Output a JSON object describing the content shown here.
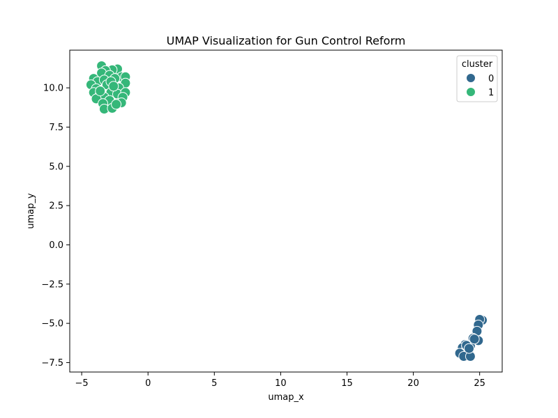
{
  "chart_data": {
    "type": "scatter",
    "title": "UMAP Visualization for Gun Control Reform",
    "xlabel": "umap_x",
    "ylabel": "umap_y",
    "xlim": [
      -5.9,
      26.7
    ],
    "ylim": [
      -8.1,
      12.4
    ],
    "xticks": [
      -5,
      0,
      5,
      10,
      15,
      20,
      25
    ],
    "yticks": [
      -7.5,
      -5.0,
      -2.5,
      0.0,
      2.5,
      5.0,
      7.5,
      10.0
    ],
    "xtick_labels": [
      "−5",
      "0",
      "5",
      "10",
      "15",
      "20",
      "25"
    ],
    "ytick_labels": [
      "−7.5",
      "−5.0",
      "−2.5",
      "0.0",
      "2.5",
      "5.0",
      "7.5",
      "10.0"
    ],
    "grid": false,
    "legend": {
      "title": "cluster",
      "placement": "top-right"
    },
    "series": [
      {
        "name": "0",
        "color": "#31688e",
        "points": [
          [
            25.2,
            -4.8
          ],
          [
            25.0,
            -4.75
          ],
          [
            24.9,
            -5.1
          ],
          [
            24.8,
            -5.5
          ],
          [
            24.5,
            -5.95
          ],
          [
            24.9,
            -6.1
          ],
          [
            24.3,
            -6.45
          ],
          [
            24.1,
            -6.7
          ],
          [
            24.2,
            -6.9
          ],
          [
            23.9,
            -6.35
          ],
          [
            23.7,
            -6.55
          ],
          [
            24.0,
            -6.45
          ],
          [
            23.5,
            -6.9
          ],
          [
            23.8,
            -7.1
          ],
          [
            24.3,
            -7.1
          ],
          [
            24.0,
            -6.4
          ],
          [
            24.6,
            -6.0
          ],
          [
            24.2,
            -6.6
          ]
        ]
      },
      {
        "name": "1",
        "color": "#35b779",
        "points": [
          [
            -3.5,
            11.4
          ],
          [
            -3.0,
            11.1
          ],
          [
            -2.3,
            11.2
          ],
          [
            -2.7,
            11.15
          ],
          [
            -3.2,
            11.1
          ],
          [
            -3.5,
            10.95
          ],
          [
            -2.0,
            10.7
          ],
          [
            -1.7,
            10.7
          ],
          [
            -2.9,
            10.8
          ],
          [
            -4.1,
            10.6
          ],
          [
            -3.8,
            10.4
          ],
          [
            -3.3,
            10.5
          ],
          [
            -2.5,
            10.6
          ],
          [
            -1.7,
            10.3
          ],
          [
            -4.3,
            10.2
          ],
          [
            -3.9,
            9.95
          ],
          [
            -3.1,
            10.2
          ],
          [
            -2.8,
            10.4
          ],
          [
            -2.2,
            10.0
          ],
          [
            -4.1,
            9.7
          ],
          [
            -3.6,
            9.6
          ],
          [
            -2.8,
            9.7
          ],
          [
            -2.3,
            9.6
          ],
          [
            -1.7,
            9.7
          ],
          [
            -3.3,
            9.4
          ],
          [
            -2.9,
            9.2
          ],
          [
            -1.9,
            9.4
          ],
          [
            -3.9,
            9.3
          ],
          [
            -3.4,
            9.0
          ],
          [
            -2.3,
            9.0
          ],
          [
            -2.0,
            9.05
          ],
          [
            -3.3,
            8.65
          ],
          [
            -2.7,
            8.7
          ],
          [
            -2.4,
            8.95
          ],
          [
            -3.6,
            9.8
          ],
          [
            -2.6,
            10.1
          ]
        ]
      }
    ]
  }
}
